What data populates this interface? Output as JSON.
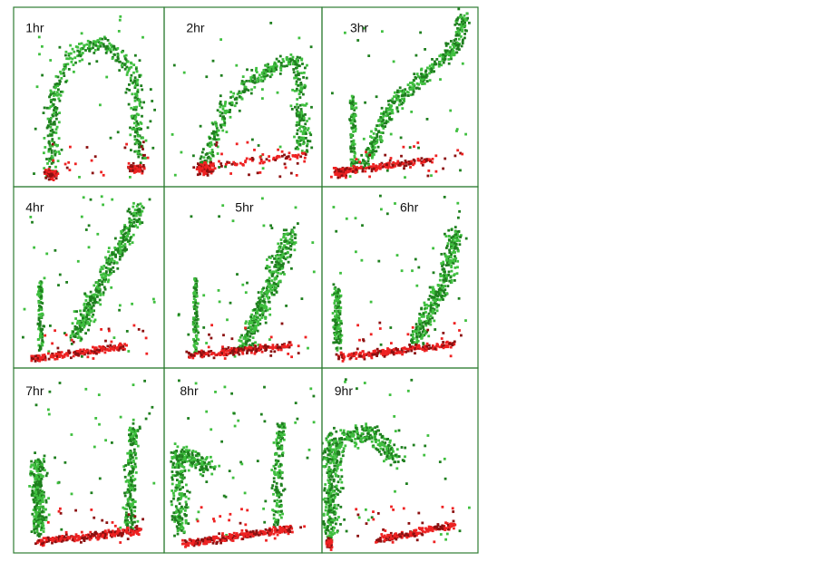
{
  "panels": [
    {
      "label": "1hr"
    },
    {
      "label": "2hr"
    },
    {
      "label": "3hr"
    },
    {
      "label": "4hr"
    },
    {
      "label": "5hr"
    },
    {
      "label": "6hr"
    },
    {
      "label": "7hr"
    },
    {
      "label": "8hr"
    },
    {
      "label": "9hr"
    }
  ]
}
